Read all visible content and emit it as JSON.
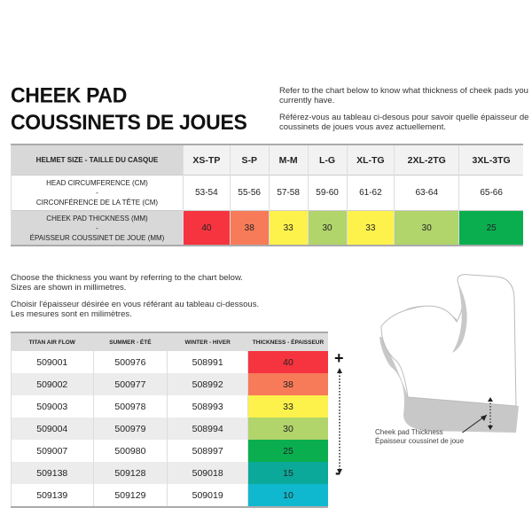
{
  "title": {
    "line1": "CHEEK PAD",
    "line2": "COUSSINETS DE JOUES"
  },
  "intro": {
    "en": "Refer to the chart below to know what thickness of cheek pads you currently have.",
    "fr": "Référez-vous au tableau ci-desous pour savoir quelle épaisseur de coussinets de joues vous avez actuellement."
  },
  "size_table": {
    "header_label": "HELMET SIZE - TAILLE DU CASQUE",
    "sizes": [
      "XS-TP",
      "S-P",
      "M-M",
      "L-G",
      "XL-TG",
      "2XL-2TG",
      "3XL-3TG"
    ],
    "circ_label_en": "HEAD CIRCUMFERENCE (CM)",
    "circ_label_fr": "CIRCONFÉRENCE DE LA TÊTE (CM)",
    "circumferences": [
      "53-54",
      "55-56",
      "57-58",
      "59-60",
      "61-62",
      "63-64",
      "65-66"
    ],
    "thick_label_en": "CHEEK PAD THICKNESS (MM)",
    "thick_label_fr": "ÉPAISSEUR COUSSINET DE JOUE (MM)",
    "thicknesses": [
      "40",
      "38",
      "33",
      "30",
      "33",
      "30",
      "25"
    ],
    "colors": [
      "#f5343f",
      "#f77b59",
      "#fdf24c",
      "#b1d46b",
      "#fdf24c",
      "#b1d46b",
      "#0aae4f"
    ]
  },
  "note": {
    "en1": "Choose the thickness you want by referring to the chart below.",
    "en2": "Sizes are shown in millimetres.",
    "fr1": "Choisir l'épaisseur désirée en vous référant au tableau ci-dessous.",
    "fr2": "Les mesures sont en milimètres."
  },
  "parts_table": {
    "headers": [
      "TITAN AIR FLOW",
      "SUMMER - ÉTÉ",
      "WINTER - HIVER",
      "THICKNESS - ÉPAISSEUR"
    ],
    "rows": [
      [
        "509001",
        "500976",
        "508991",
        "40"
      ],
      [
        "509002",
        "500977",
        "508992",
        "38"
      ],
      [
        "509003",
        "500978",
        "508993",
        "33"
      ],
      [
        "509004",
        "500979",
        "508994",
        "30"
      ],
      [
        "509007",
        "500980",
        "508997",
        "25"
      ],
      [
        "509138",
        "509128",
        "509018",
        "15"
      ],
      [
        "509139",
        "509129",
        "509019",
        "10"
      ]
    ],
    "colors": [
      "#f5343f",
      "#f77b59",
      "#fdf24c",
      "#b1d46b",
      "#0aae4f",
      "#0aa99a",
      "#10b8cf"
    ]
  },
  "scale": {
    "plus": "+",
    "minus": "-"
  },
  "illustration": {
    "caption_en": "Cheek pad Thickness",
    "caption_fr": "Épaisseur coussinet de joue"
  }
}
